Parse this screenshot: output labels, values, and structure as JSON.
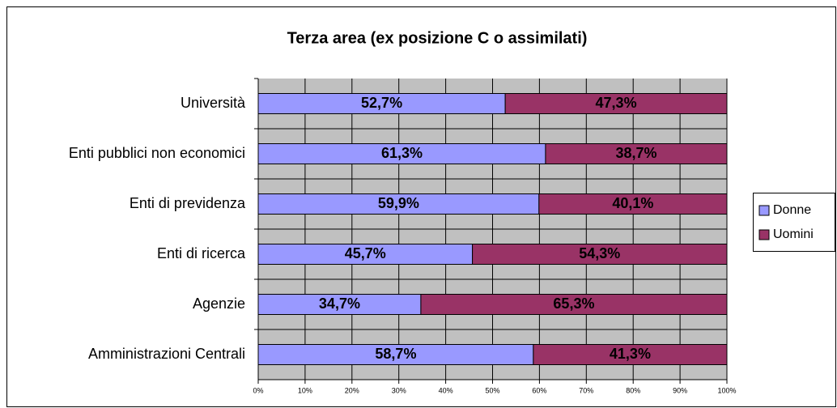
{
  "chart_data": {
    "type": "stacked_barh",
    "title": "Terza area (ex posizione C o assimilati)",
    "categories": [
      "Università",
      "Enti pubblici non economici",
      "Enti di previdenza",
      "Enti di ricerca",
      "Agenzie",
      "Amministrazioni Centrali"
    ],
    "series": [
      {
        "name": "Donne",
        "color": "#9999ff",
        "values": [
          52.7,
          61.3,
          59.9,
          45.7,
          34.7,
          58.7
        ],
        "value_labels": [
          "52,7%",
          "61,3%",
          "59,9%",
          "45,7%",
          "34,7%",
          "58,7%"
        ]
      },
      {
        "name": "Uomini",
        "color": "#993366",
        "values": [
          47.3,
          38.7,
          40.1,
          54.3,
          65.3,
          41.3
        ],
        "value_labels": [
          "47,3%",
          "38,7%",
          "40,1%",
          "54,3%",
          "65,3%",
          "41,3%"
        ]
      }
    ],
    "xlim": [
      0,
      100
    ],
    "xticks": [
      {
        "value": 0,
        "label": "0%"
      },
      {
        "value": 10,
        "label": "10%"
      },
      {
        "value": 20,
        "label": "20%"
      },
      {
        "value": 30,
        "label": "30%"
      },
      {
        "value": 40,
        "label": "40%"
      },
      {
        "value": 50,
        "label": "50%"
      },
      {
        "value": 60,
        "label": "60%"
      },
      {
        "value": 70,
        "label": "70%"
      },
      {
        "value": 80,
        "label": "80%"
      },
      {
        "value": 90,
        "label": "90%"
      },
      {
        "value": 100,
        "label": "100%"
      }
    ],
    "grid": true,
    "legend": "right"
  }
}
